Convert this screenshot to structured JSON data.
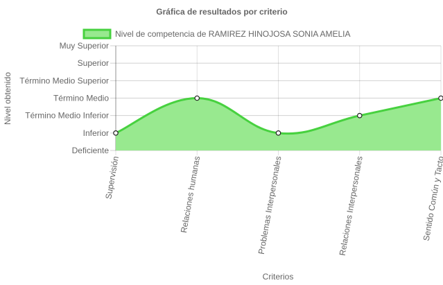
{
  "chart_data": {
    "type": "line",
    "title": "Gráfica de resultados por criterio",
    "xlabel": "Criterios",
    "ylabel": "Nivel obtenido",
    "y_levels": [
      "Deficiente",
      "Inferior",
      "Término Medio Inferior",
      "Término Medio",
      "Término Medio Superior",
      "Superior",
      "Muy Superior"
    ],
    "categories": [
      "Supervisión",
      "Relaciones humanas",
      "Problemas Interpersonales",
      "Relaciones Interpersonales",
      "Sentido Común y Tacto"
    ],
    "series": [
      {
        "name": "Nivel de competencia de RAMIREZ HINOJOSA SONIA AMELIA",
        "values": [
          1,
          3,
          1,
          2,
          3
        ],
        "fill": "#98e98f",
        "stroke": "#47d13f"
      }
    ],
    "ylim": [
      0,
      6
    ],
    "grid": true,
    "legend": "top"
  }
}
